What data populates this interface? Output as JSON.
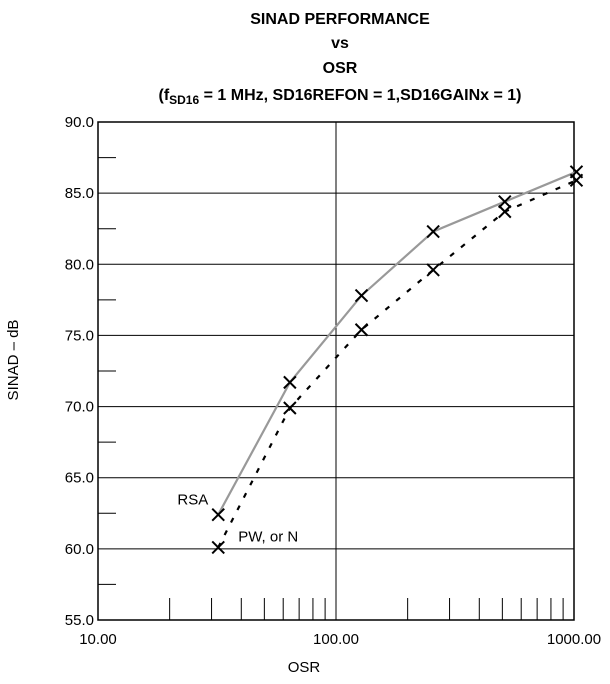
{
  "chart_data": {
    "type": "line",
    "title": "SINAD PERFORMANCE",
    "subtitle_line1": "vs",
    "subtitle_line2": "OSR",
    "condition": {
      "open": "(f",
      "subscript": "SD16",
      "rest": " = 1 MHz, SD16REFON = 1,SD16GAINx = 1)"
    },
    "xlabel": "OSR",
    "ylabel": "SINAD – dB",
    "xscale": "log",
    "xlim": [
      10,
      1000
    ],
    "ylim": [
      55,
      90
    ],
    "x_ticks": [
      "10.00",
      "100.00",
      "1000.00"
    ],
    "y_ticks": [
      "55.0",
      "60.0",
      "65.0",
      "70.0",
      "75.0",
      "80.0",
      "85.0",
      "90.0"
    ],
    "grid": true,
    "series": [
      {
        "name": "RSA",
        "style": "solid",
        "color": "#999999",
        "x": [
          32,
          64,
          128,
          256,
          512,
          1024
        ],
        "values": [
          62.4,
          71.7,
          77.8,
          82.3,
          84.4,
          86.5
        ]
      },
      {
        "name": "PW, or N",
        "style": "dotted",
        "color": "#000000",
        "x": [
          32,
          64,
          128,
          256,
          512,
          1024
        ],
        "values": [
          60.1,
          69.9,
          75.4,
          79.6,
          83.7,
          85.9
        ]
      }
    ]
  }
}
